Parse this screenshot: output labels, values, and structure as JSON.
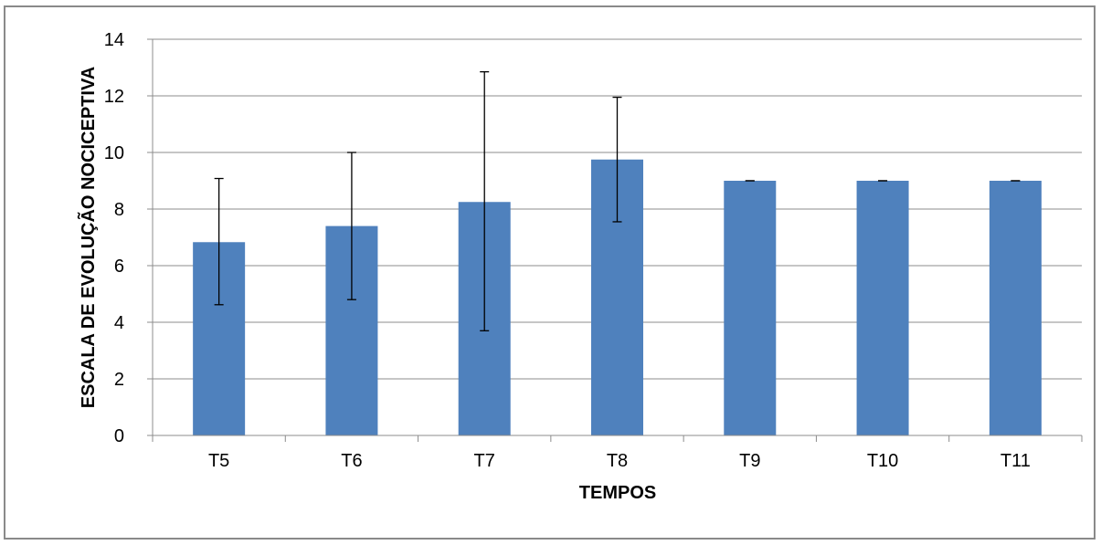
{
  "chart_data": {
    "type": "bar",
    "title": "",
    "xlabel": "TEMPOS",
    "ylabel": "ESCALA DE EVOLUÇÃO NOCICEPTIVA",
    "categories": [
      "T5",
      "T6",
      "T7",
      "T8",
      "T9",
      "T10",
      "T11"
    ],
    "values": [
      6.83,
      7.4,
      8.25,
      9.75,
      9.0,
      9.0,
      9.0
    ],
    "error_low": [
      4.62,
      4.8,
      3.7,
      7.55,
      9.0,
      9.0,
      9.0
    ],
    "error_high": [
      9.08,
      10.0,
      12.85,
      11.95,
      9.0,
      9.0,
      9.0
    ],
    "ylim": [
      0,
      14
    ],
    "yticks": [
      "0",
      "2",
      "4",
      "6",
      "8",
      "10",
      "12",
      "14"
    ],
    "grid": true,
    "legend": "none",
    "bar_color": "#4F81BD",
    "grid_color": "#8c8c8c"
  }
}
